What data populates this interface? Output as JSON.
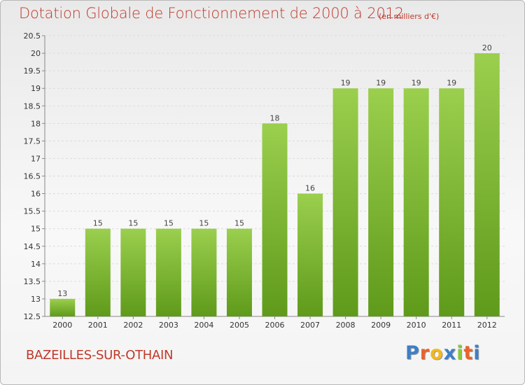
{
  "chart_data": {
    "type": "bar",
    "title": "Dotation Globale de Fonctionnement de 2000 à 2012",
    "subtitle": "(en milliers d'€)",
    "xlabel": "",
    "ylabel": "",
    "categories": [
      "2000",
      "2001",
      "2002",
      "2003",
      "2004",
      "2005",
      "2006",
      "2007",
      "2008",
      "2009",
      "2010",
      "2011",
      "2012"
    ],
    "values": [
      13,
      15,
      15,
      15,
      15,
      15,
      18,
      16,
      19,
      19,
      19,
      19,
      20
    ],
    "ylim": [
      12.5,
      20.5
    ],
    "yticks": [
      "12.5",
      "13",
      "13.5",
      "14",
      "14.5",
      "15",
      "15.5",
      "16",
      "16.5",
      "17",
      "17.5",
      "18",
      "18.5",
      "19",
      "19.5",
      "20",
      "20.5"
    ],
    "grid": true,
    "bar_color_top": "#9bcf4e",
    "bar_color_bottom": "#5f9a1a"
  },
  "footer": {
    "commune": "BAZEILLES-SUR-OTHAIN",
    "logo_letters": [
      "P",
      "r",
      "o",
      "x",
      "i",
      "t",
      "i"
    ],
    "logo_colors": [
      "#3d7fc7",
      "#e8632b",
      "#f2b81d",
      "#3d7fc7",
      "#8cc63f",
      "#e8632b",
      "#3d7fc7"
    ]
  }
}
